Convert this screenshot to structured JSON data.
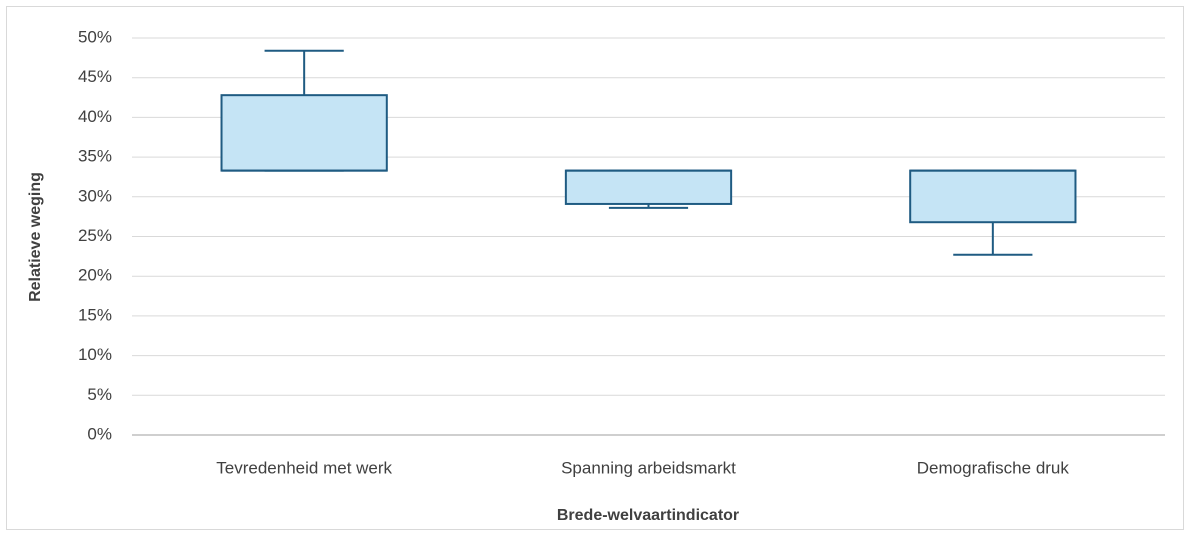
{
  "chart_data": {
    "type": "box",
    "xlabel": "Brede-welvaartindicator",
    "ylabel": "Relatieve weging",
    "categories": [
      "Tevredenheid met werk",
      "Spanning arbeidsmarkt",
      "Demografische druk"
    ],
    "boxes": [
      {
        "min": 33.3,
        "q1": 33.3,
        "median": 33.3,
        "q3": 42.8,
        "max": 48.4
      },
      {
        "min": 28.6,
        "q1": 29.1,
        "median": 33.3,
        "q3": 33.3,
        "max": 33.3
      },
      {
        "min": 22.7,
        "q1": 26.8,
        "median": 33.3,
        "q3": 33.3,
        "max": 33.3
      }
    ],
    "color": "#c5e4f5",
    "edge_color": "#1f5b82",
    "ylim": [
      0,
      50
    ],
    "yticks": [
      {
        "value": 0,
        "label": "0%"
      },
      {
        "value": 5,
        "label": "5%"
      },
      {
        "value": 10,
        "label": "10%"
      },
      {
        "value": 15,
        "label": "15%"
      },
      {
        "value": 20,
        "label": "20%"
      },
      {
        "value": 25,
        "label": "25%"
      },
      {
        "value": 30,
        "label": "30%"
      },
      {
        "value": 35,
        "label": "35%"
      },
      {
        "value": 40,
        "label": "40%"
      },
      {
        "value": 45,
        "label": "45%"
      },
      {
        "value": 50,
        "label": "50%"
      }
    ],
    "grid": true
  }
}
